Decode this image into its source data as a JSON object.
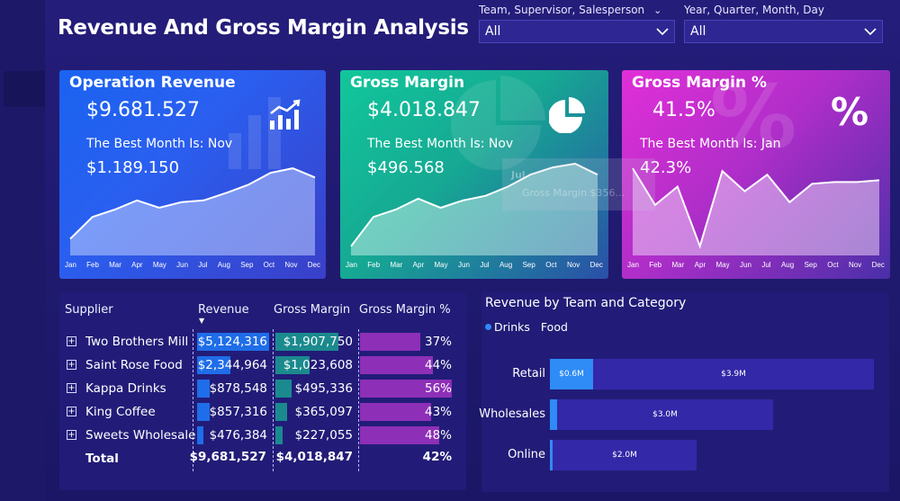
{
  "title": "Revenue And Gross Margin Analysis",
  "filters": [
    {
      "label": "Team, Supervisor, Salesperson",
      "value": "All",
      "icon": "chevron-down-icon"
    },
    {
      "label": "Year, Quarter, Month, Day",
      "value": "All",
      "icon": "chevron-down-icon"
    }
  ],
  "months": [
    "Jan",
    "Feb",
    "Mar",
    "Apr",
    "May",
    "Jun",
    "Jul",
    "Aug",
    "Sep",
    "Oct",
    "Nov",
    "Dec"
  ],
  "cards": [
    {
      "title": "Operation Revenue",
      "value": "$9.681.527",
      "best_label": "The Best Month Is: Nov",
      "best_value": "$1.189.150",
      "icon": "bar-line-chart-icon",
      "trend": [
        0.18,
        0.42,
        0.5,
        0.6,
        0.52,
        0.58,
        0.6,
        0.68,
        0.77,
        0.9,
        0.95,
        0.85
      ]
    },
    {
      "title": "Gross Margin",
      "value": "$4.018.847",
      "best_label": "The Best Month Is: Nov",
      "best_value": "$496.568",
      "icon": "pie-chart-icon",
      "trend": [
        0.1,
        0.42,
        0.5,
        0.62,
        0.52,
        0.6,
        0.65,
        0.75,
        0.88,
        0.96,
        1.0,
        0.88
      ]
    },
    {
      "title": "Gross Margin %",
      "value": "41.5%",
      "best_label": "The Best Month Is: Jan",
      "best_value": "42.3%",
      "icon": "percent-icon",
      "trend": [
        0.95,
        0.55,
        0.75,
        0.1,
        0.92,
        0.7,
        0.88,
        0.58,
        0.78,
        0.8,
        0.8,
        0.82
      ]
    }
  ],
  "tooltip": {
    "line1": "Jul",
    "line2": "Gross Margin  $356..."
  },
  "supplier_table": {
    "headers": {
      "supplier": "Supplier",
      "revenue": "Revenue",
      "margin": "Gross Margin",
      "margin_pct": "Gross Margin %"
    },
    "sort_indicator": "▼",
    "rows": [
      {
        "supplier": "Two Brothers Mill",
        "revenue": "$5,124,316",
        "revenue_frac": 1.0,
        "margin": "$1,907,750",
        "margin_frac": 1.0,
        "margin_pct": "37%",
        "pct_frac": 0.66
      },
      {
        "supplier": "Saint Rose Food",
        "revenue": "$2,344,964",
        "revenue_frac": 0.46,
        "margin": "$1,023,608",
        "margin_frac": 0.54,
        "margin_pct": "44%",
        "pct_frac": 0.79
      },
      {
        "supplier": "Kappa Drinks",
        "revenue": "$878,548",
        "revenue_frac": 0.17,
        "margin": "$495,336",
        "margin_frac": 0.26,
        "margin_pct": "56%",
        "pct_frac": 1.0
      },
      {
        "supplier": "King Coffee",
        "revenue": "$857,316",
        "revenue_frac": 0.17,
        "margin": "$365,097",
        "margin_frac": 0.19,
        "margin_pct": "43%",
        "pct_frac": 0.77
      },
      {
        "supplier": "Sweets Wholesale",
        "revenue": "$476,384",
        "revenue_frac": 0.09,
        "margin": "$227,055",
        "margin_frac": 0.12,
        "margin_pct": "48%",
        "pct_frac": 0.86
      }
    ],
    "total": {
      "label": "Total",
      "revenue": "$9,681,527",
      "margin": "$4,018,847",
      "margin_pct": "42%"
    }
  },
  "team_chart": {
    "title": "Revenue by Team and Category",
    "legend": [
      {
        "name": "Drinks",
        "color": "#2f8bf5"
      },
      {
        "name": "Food",
        "color": "#3328a8"
      }
    ],
    "rows": [
      {
        "team": "Retail",
        "drinks": 0.6,
        "drinks_label": "$0.6M",
        "food": 3.9,
        "food_label": "$3.9M"
      },
      {
        "team": "Wholesales",
        "drinks": 0.1,
        "drinks_label": "",
        "food": 3.0,
        "food_label": "$3.0M"
      },
      {
        "team": "Online",
        "drinks": 0.03,
        "drinks_label": "",
        "food": 2.0,
        "food_label": "$2.0M"
      }
    ],
    "max": 4.5
  }
}
